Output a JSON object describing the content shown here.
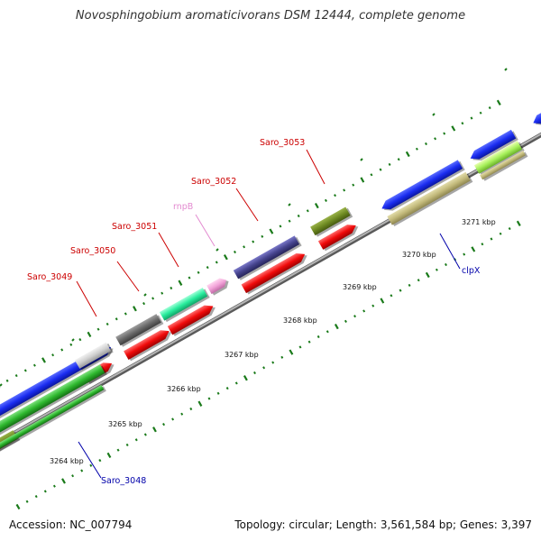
{
  "title": "Novosphingobium aromaticivorans DSM 12444, complete genome",
  "footer": {
    "accession": "Accession: NC_007794",
    "summary": "Topology: circular; Length: 3,561,584 bp; Genes: 3,397"
  },
  "colors": {
    "backbone": "#8a8a8a",
    "tick": "#1a7a1a",
    "label_red": "#cc0000",
    "label_blue": "#0000aa",
    "label_pink": "#e38ad0"
  },
  "scale_ticks": [
    "3264 kbp",
    "3265 kbp",
    "3266 kbp",
    "3267 kbp",
    "3268 kbp",
    "3269 kbp",
    "3270 kbp",
    "3271 kbp"
  ],
  "gene_labels": [
    {
      "name": "saro-3049-label",
      "text": "Saro_3049"
    },
    {
      "name": "saro-3050-label",
      "text": "Saro_3050"
    },
    {
      "name": "saro-3051-label",
      "text": "Saro_3051"
    },
    {
      "name": "rnpb-label",
      "text": "rnpB"
    },
    {
      "name": "saro-3052-label",
      "text": "Saro_3052"
    },
    {
      "name": "saro-3053-label",
      "text": "Saro_3053"
    },
    {
      "name": "clpx-label",
      "text": "clpX"
    },
    {
      "name": "saro-3048-label",
      "text": "Saro_3048"
    }
  ]
}
